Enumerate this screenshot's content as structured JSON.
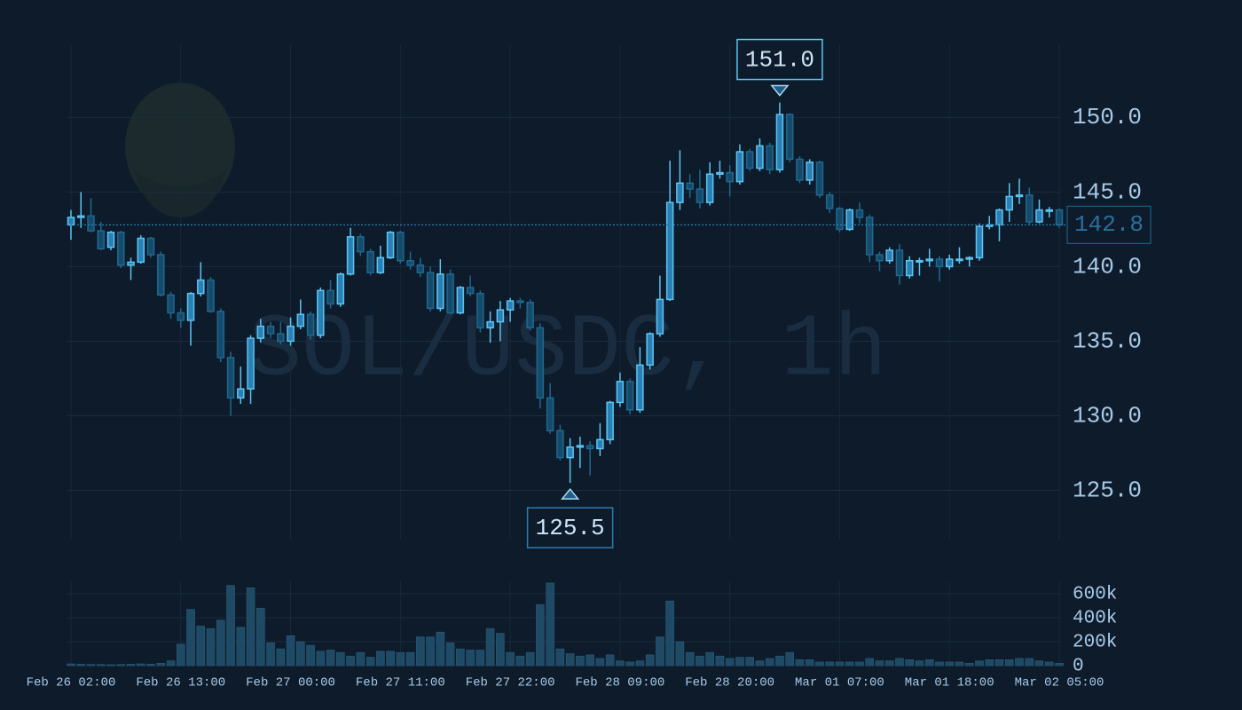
{
  "chart_data": {
    "type": "candlestick",
    "watermark": "SOL/USDC, 1h",
    "categories": [
      "Feb 26 02:00",
      null,
      null,
      null,
      null,
      null,
      null,
      null,
      null,
      null,
      null,
      "Feb 26 13:00",
      null,
      null,
      null,
      null,
      null,
      null,
      null,
      null,
      null,
      null,
      "Feb 27 00:00",
      null,
      null,
      null,
      null,
      null,
      null,
      null,
      null,
      null,
      null,
      "Feb 27 11:00",
      null,
      null,
      null,
      null,
      null,
      null,
      null,
      null,
      null,
      null,
      "Feb 27 22:00",
      null,
      null,
      null,
      null,
      null,
      null,
      null,
      null,
      null,
      null,
      "Feb 28 09:00",
      null,
      null,
      null,
      null,
      null,
      null,
      null,
      null,
      null,
      null,
      "Feb 28 20:00",
      null,
      null,
      null,
      null,
      null,
      null,
      null,
      null,
      null,
      null,
      "Mar 01 07:00",
      null,
      null,
      null,
      null,
      null,
      null,
      null,
      null,
      null,
      null,
      "Mar 01 18:00",
      null,
      null,
      null,
      null,
      null,
      null,
      null,
      null,
      null,
      null,
      "Mar 02 05:00"
    ],
    "open": [
      142.8,
      143.3,
      143.4,
      142.4,
      141.3,
      142.3,
      140.1,
      140.3,
      141.9,
      140.8,
      138.1,
      136.9,
      136.4,
      138.2,
      139.1,
      137.0,
      133.9,
      131.2,
      131.8,
      135.2,
      136.0,
      135.5,
      135.0,
      136.0,
      136.8,
      135.4,
      138.4,
      137.5,
      139.5,
      142.0,
      141.0,
      139.6,
      140.6,
      142.3,
      140.4,
      140.1,
      139.6,
      137.2,
      139.5,
      136.9,
      138.6,
      138.2,
      135.9,
      136.3,
      137.1,
      137.7,
      137.6,
      135.9,
      131.2,
      129.0,
      127.2,
      127.9,
      128.0,
      127.8,
      128.4,
      130.9,
      132.3,
      130.4,
      133.4,
      135.5,
      137.8,
      144.3,
      145.6,
      145.2,
      144.3,
      146.2,
      146.3,
      145.7,
      147.7,
      146.6,
      148.1,
      146.5,
      150.2,
      147.2,
      145.8,
      147.0,
      144.8,
      143.9,
      142.5,
      143.8,
      143.3,
      140.8,
      140.4,
      141.1,
      139.4,
      140.4,
      140.4,
      140.5,
      140.0,
      140.5,
      140.5,
      140.6,
      142.7,
      142.8,
      143.8,
      144.7,
      144.8,
      143.0,
      143.8,
      143.8
    ],
    "high": [
      143.8,
      145.0,
      144.6,
      143.0,
      142.4,
      142.4,
      140.6,
      142.1,
      142.0,
      141.0,
      138.3,
      137.2,
      138.3,
      140.3,
      139.3,
      137.2,
      134.3,
      133.3,
      135.4,
      136.5,
      136.3,
      136.3,
      136.6,
      137.8,
      137.0,
      138.6,
      139.1,
      139.6,
      142.6,
      142.2,
      141.2,
      141.4,
      142.4,
      142.4,
      141.0,
      140.6,
      140.0,
      140.5,
      139.8,
      138.7,
      139.4,
      138.4,
      137.0,
      137.7,
      137.9,
      137.9,
      137.8,
      136.2,
      132.2,
      129.4,
      128.5,
      128.6,
      128.3,
      129.5,
      131.0,
      132.9,
      132.5,
      134.6,
      135.6,
      139.4,
      147.1,
      147.8,
      146.2,
      146.5,
      147.0,
      147.1,
      146.8,
      148.2,
      147.9,
      148.6,
      148.3,
      151.0,
      150.3,
      147.4,
      147.2,
      147.1,
      145.0,
      144.0,
      143.9,
      144.3,
      143.5,
      141.0,
      141.3,
      141.5,
      140.7,
      140.6,
      141.2,
      140.7,
      140.8,
      141.3,
      140.7,
      142.9,
      143.4,
      143.9,
      145.6,
      145.9,
      145.3,
      144.5,
      144.0,
      143.9
    ],
    "low": [
      141.8,
      142.6,
      142.3,
      141.1,
      141.1,
      139.9,
      139.1,
      140.2,
      140.6,
      138.0,
      136.5,
      135.9,
      134.7,
      138.0,
      136.9,
      133.6,
      130.0,
      130.8,
      130.8,
      134.9,
      135.2,
      134.8,
      134.7,
      135.8,
      135.1,
      135.2,
      137.2,
      137.3,
      139.4,
      140.7,
      139.4,
      139.5,
      140.5,
      140.2,
      139.8,
      139.3,
      137.0,
      137.0,
      136.8,
      136.8,
      138.0,
      135.6,
      134.9,
      135.0,
      136.3,
      137.2,
      135.7,
      130.5,
      128.8,
      127.0,
      125.5,
      126.5,
      126.0,
      127.3,
      128.1,
      130.6,
      130.1,
      130.2,
      133.1,
      135.3,
      137.7,
      143.8,
      144.6,
      143.9,
      144.1,
      145.9,
      144.7,
      145.5,
      146.4,
      146.4,
      146.2,
      146.3,
      147.0,
      145.6,
      145.5,
      144.6,
      143.6,
      142.3,
      142.4,
      142.9,
      140.3,
      139.7,
      140.2,
      138.8,
      139.2,
      139.4,
      140.0,
      139.0,
      139.8,
      140.2,
      140.0,
      140.4,
      142.5,
      141.7,
      143.0,
      144.2,
      142.8,
      142.9,
      143.3,
      142.6
    ],
    "close": [
      143.3,
      143.4,
      142.4,
      141.2,
      142.3,
      140.1,
      140.3,
      141.9,
      140.8,
      138.1,
      136.9,
      136.4,
      138.2,
      139.1,
      137.0,
      133.9,
      131.2,
      131.8,
      135.2,
      136.0,
      135.5,
      135.0,
      136.0,
      136.8,
      135.4,
      138.4,
      137.5,
      139.5,
      142.0,
      141.0,
      139.6,
      140.6,
      142.3,
      140.4,
      140.1,
      139.6,
      137.2,
      139.5,
      136.9,
      138.6,
      138.2,
      135.9,
      136.3,
      137.1,
      137.7,
      137.6,
      135.9,
      131.2,
      129.0,
      127.2,
      127.9,
      128.0,
      127.8,
      128.4,
      130.9,
      132.3,
      130.4,
      133.4,
      135.5,
      137.8,
      144.3,
      145.6,
      145.2,
      144.3,
      146.2,
      146.3,
      145.7,
      147.7,
      146.6,
      148.1,
      146.5,
      150.2,
      147.2,
      145.8,
      147.0,
      144.8,
      143.9,
      142.5,
      143.8,
      143.3,
      140.8,
      140.4,
      141.1,
      139.4,
      140.4,
      140.4,
      140.5,
      140.0,
      140.5,
      140.5,
      140.6,
      142.7,
      142.8,
      143.8,
      144.7,
      144.8,
      143.0,
      143.8,
      143.8,
      142.8
    ],
    "volume": [
      15000,
      12000,
      10000,
      10000,
      8000,
      10000,
      12000,
      15000,
      12000,
      20000,
      40000,
      180000,
      470000,
      330000,
      310000,
      380000,
      670000,
      320000,
      650000,
      480000,
      190000,
      140000,
      250000,
      200000,
      170000,
      120000,
      130000,
      110000,
      80000,
      110000,
      70000,
      120000,
      120000,
      110000,
      110000,
      240000,
      240000,
      280000,
      190000,
      140000,
      130000,
      130000,
      310000,
      270000,
      110000,
      80000,
      110000,
      510000,
      690000,
      140000,
      100000,
      80000,
      90000,
      60000,
      90000,
      40000,
      30000,
      40000,
      90000,
      240000,
      540000,
      200000,
      110000,
      80000,
      110000,
      80000,
      60000,
      70000,
      70000,
      40000,
      60000,
      80000,
      110000,
      50000,
      50000,
      30000,
      30000,
      30000,
      30000,
      30000,
      60000,
      40000,
      40000,
      60000,
      50000,
      40000,
      50000,
      30000,
      30000,
      30000,
      20000,
      40000,
      50000,
      50000,
      50000,
      60000,
      60000,
      40000,
      30000,
      20000
    ],
    "ylim": [
      121.7,
      154.9
    ],
    "yticks": [
      {
        "value": 125,
        "label": "125.0"
      },
      {
        "value": 130,
        "label": "130.0"
      },
      {
        "value": 135,
        "label": "135.0"
      },
      {
        "value": 140,
        "label": "140.0"
      },
      {
        "value": 145,
        "label": "145.0"
      },
      {
        "value": 150,
        "label": "150.0"
      }
    ],
    "volume_ylim": [
      0,
      704000
    ],
    "volume_yticks": [
      0,
      {
        "value": 200000,
        "label": "200k"
      },
      {
        "value": 400000,
        "label": "400k"
      },
      {
        "value": 600000,
        "label": "600k"
      }
    ],
    "high_marker": {
      "value": 151.0,
      "label": "151.0"
    },
    "low_marker": {
      "value": 125.5,
      "label": "125.5"
    },
    "last_price": {
      "value": 142.8,
      "label": "142.8"
    },
    "up_color": "#5cc4f2",
    "down_color": "#1e6890",
    "volume_color": "#1f4a66",
    "grid": true
  }
}
